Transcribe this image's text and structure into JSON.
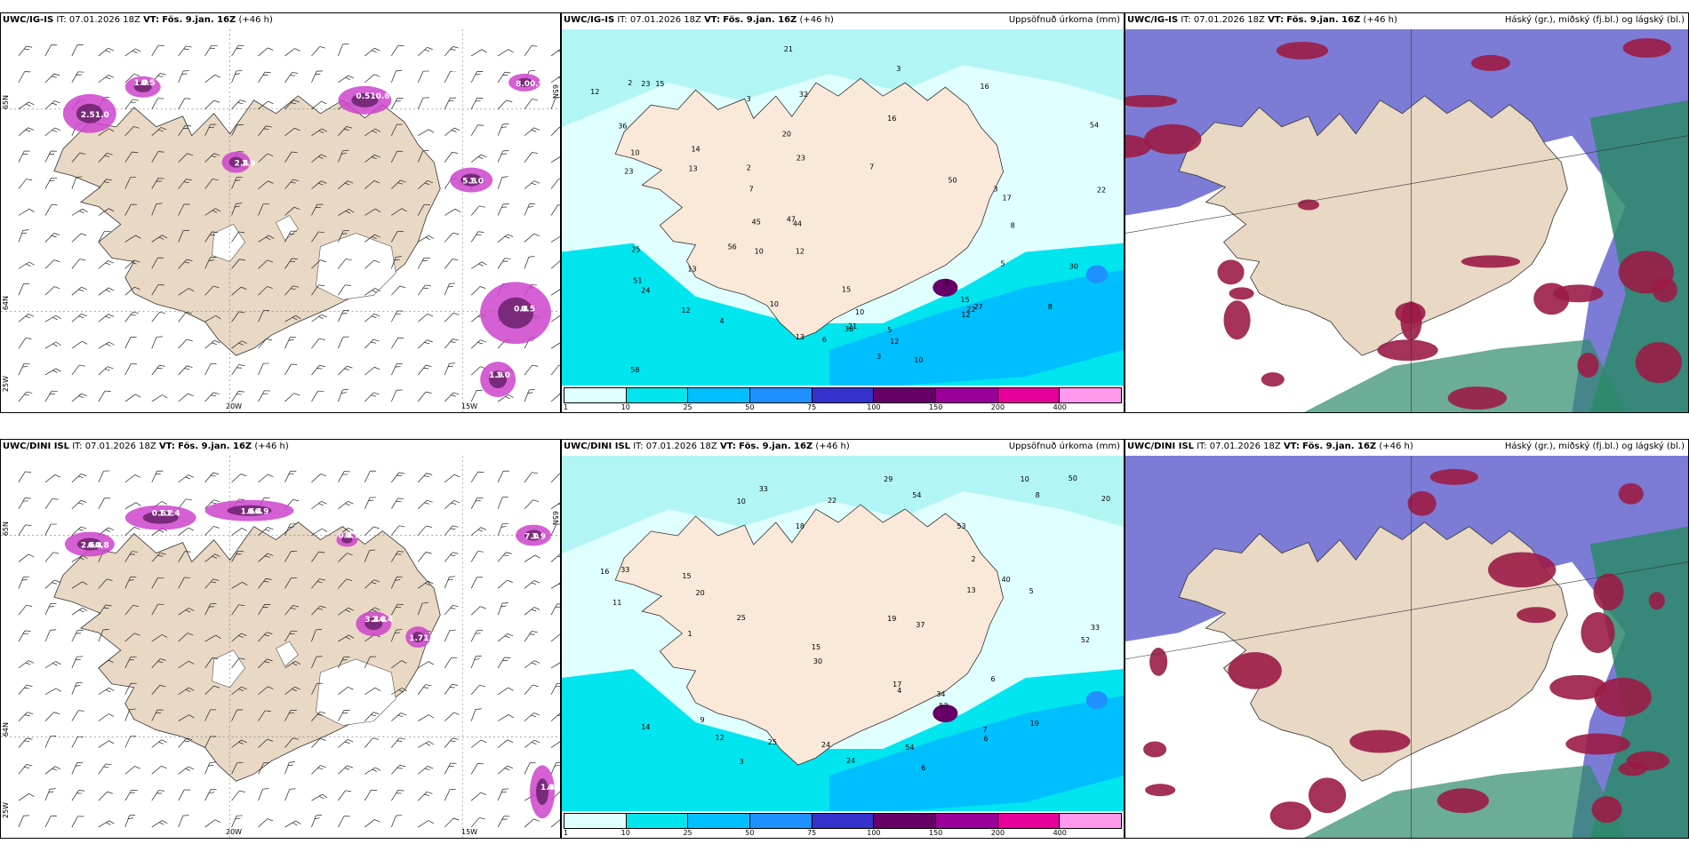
{
  "panels": [
    {
      "id": "r1c1",
      "model": "UWC/IG-IS",
      "it": "IT: 07.01.2026 18Z",
      "vt_label": "VT:",
      "vt_value": "Fös. 9.jan. 16Z",
      "lead": "(+46 h)",
      "right": "",
      "axes": {
        "lat_top": "65N",
        "lat_mid": "64N",
        "lat_bot": "25W",
        "lon1": "20W",
        "lon2": "15W",
        "lat_right": "65N"
      }
    },
    {
      "id": "r1c2",
      "model": "UWC/IG-IS",
      "it": "IT: 07.01.2026 18Z",
      "vt_label": "VT:",
      "vt_value": "Fös. 9.jan. 16Z",
      "lead": "(+46 h)",
      "right": "Uppsöfnuð úrkoma (mm)"
    },
    {
      "id": "r1c3",
      "model": "UWC/IG-IS",
      "it": "IT: 07.01.2026 18Z",
      "vt_label": "VT:",
      "vt_value": "Fös. 9.jan. 16Z",
      "lead": "(+46 h)",
      "right": "Háský (gr.), miðský (fj.bl.) og lágský (bl.)"
    },
    {
      "id": "r2c1",
      "model": "UWC/DINI ISL",
      "it": "IT: 07.01.2026 18Z",
      "vt_label": "VT:",
      "vt_value": "Fös. 9.jan. 16Z",
      "lead": "(+46 h)",
      "right": "",
      "axes": {
        "lat_top": "65N",
        "lat_mid": "64N",
        "lat_bot": "25W",
        "lon1": "20W",
        "lon2": "15W",
        "lat_right": "65N"
      }
    },
    {
      "id": "r2c2",
      "model": "UWC/DINI ISL",
      "it": "IT: 07.01.2026 18Z",
      "vt_label": "VT:",
      "vt_value": "Fös. 9.jan. 16Z",
      "lead": "(+46 h)",
      "right": "Uppsöfnuð úrkoma (mm)"
    },
    {
      "id": "r2c3",
      "model": "UWC/DINI ISL",
      "it": "IT: 07.01.2026 18Z",
      "vt_label": "VT:",
      "vt_value": "Fös. 9.jan. 16Z",
      "lead": "(+46 h)",
      "right": "Háský (gr.), miðský (fj.bl.) og lágský (bl.)"
    }
  ],
  "precip_colorbar": {
    "ticks": [
      "1",
      "10",
      "25",
      "50",
      "75",
      "100",
      "150",
      "200",
      "400"
    ],
    "colors": [
      "#e0ffff",
      "#00e5ee",
      "#00bfff",
      "#1e90ff",
      "#3333cc",
      "#660066",
      "#990099",
      "#e60099",
      "#ff99ee"
    ]
  },
  "precip_labels_top": [
    "13",
    "10",
    "7",
    "12",
    "22",
    "24",
    "21",
    "25",
    "3",
    "14",
    "13",
    "8",
    "6",
    "10",
    "16",
    "12",
    "15",
    "22",
    "30",
    "17",
    "15",
    "8",
    "13",
    "7",
    "5",
    "4",
    "3",
    "3",
    "3",
    "2",
    "2",
    "2",
    "5",
    "15",
    "12",
    "20",
    "23",
    "27",
    "44",
    "56",
    "58",
    "12",
    "45",
    "51",
    "23",
    "16",
    "10",
    "12",
    "21",
    "32",
    "38",
    "36",
    "47",
    "50",
    "54",
    "10",
    "10",
    "23"
  ],
  "precip_labels_bot": [
    "6",
    "10",
    "9",
    "15",
    "40",
    "54",
    "52",
    "25",
    "30",
    "12",
    "14",
    "16",
    "15",
    "17",
    "13",
    "10",
    "11",
    "8",
    "6",
    "5",
    "7",
    "4",
    "3",
    "6",
    "37",
    "2",
    "1",
    "20",
    "24",
    "18",
    "52",
    "50",
    "53",
    "25",
    "33",
    "24",
    "29",
    "33",
    "33",
    "34",
    "22",
    "19",
    "20",
    "19",
    "54"
  ],
  "wind_labels_top": [
    "2.5",
    "0.5",
    "1.9",
    "0.5",
    "1.0",
    "0.5",
    "8.0",
    "1.0",
    "1.0",
    "1.0",
    "2.4",
    "10.6",
    "5.8",
    "0.8",
    "0.9",
    "1.9"
  ],
  "wind_labels_bot": [
    "2.6",
    "1.2",
    "6.9",
    "3.4",
    "3.9",
    "4.0",
    "1.7",
    "0.7",
    "0.8",
    "0.6",
    "0.4",
    "4.4",
    "7.0",
    "1.9",
    "1.3",
    "0.8",
    "0.8",
    "1.4",
    "1.6",
    "2.8"
  ],
  "colors": {
    "land": "#e8d8c4",
    "land_precip": "#fae8d8",
    "cloud_high": "#9b1c46",
    "cloud_mid": "#5050c8",
    "cloud_low": "#2c8a6a",
    "magenta": "#cc44cc"
  }
}
